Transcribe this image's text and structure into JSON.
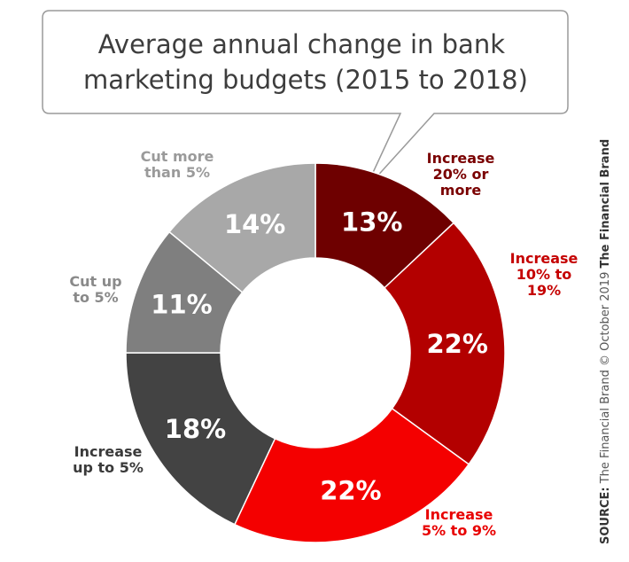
{
  "chart_data": {
    "type": "pie",
    "title": "Average annual change in bank marketing budgets (2015 to 2018)",
    "title_lines": [
      "Average annual change in bank",
      "marketing budgets (2015 to 2018)"
    ],
    "donut": true,
    "categories": [
      "Increase 20% or more",
      "Increase 10% to 19%",
      "Increase 5% to 9%",
      "Increase up to 5%",
      "Cut up to 5%",
      "Cut more than 5%"
    ],
    "values": [
      13,
      22,
      22,
      18,
      11,
      14
    ],
    "value_labels": [
      "13%",
      "22%",
      "22%",
      "18%",
      "11%",
      "14%"
    ],
    "label_lines": [
      [
        "Increase",
        "20% or",
        "more"
      ],
      [
        "Increase",
        "10% to",
        "19%"
      ],
      [
        "Increase",
        "5% to 9%"
      ],
      [
        "Increase",
        "up to 5%"
      ],
      [
        "Cut up",
        "to 5%"
      ],
      [
        "Cut more",
        "than 5%"
      ]
    ],
    "colors": [
      "#6e0000",
      "#b30000",
      "#f40000",
      "#434343",
      "#7f7f7f",
      "#a8a8a8"
    ],
    "label_colors": [
      "#7a0000",
      "#c50000",
      "#e80000",
      "#3a3a3a",
      "#8a8a8a",
      "#9a9a9a"
    ]
  },
  "source": {
    "prefix": "SOURCE:",
    "text": " The Financial Brand © October 2019 ",
    "brand": "The Financial Brand"
  }
}
